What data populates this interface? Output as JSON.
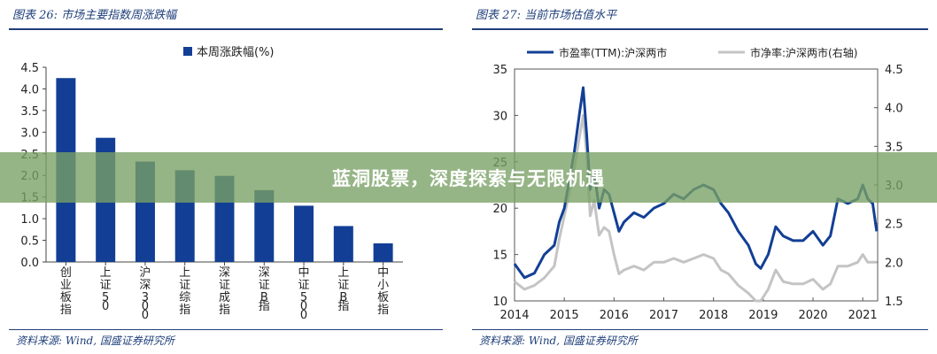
{
  "figures": {
    "left_title": "图表 26:  市场主要指数周涨跌幅",
    "right_title": "图表 27:  当前市场估值水平",
    "source": "资料来源: Wind, 国盛证券研究所"
  },
  "banner": {
    "text": "蓝洞股票，深度探索与无限机遇"
  },
  "colors": {
    "navy": "#123f95",
    "gray": "#c4c4c4",
    "accent": "#1f3f7a"
  },
  "chart_data": [
    {
      "type": "bar",
      "legend": "本周涨跌幅(%)",
      "categories": [
        "创业板指",
        "上证50",
        "沪深300",
        "上证综指",
        "深证成指",
        "深证B指",
        "中证500",
        "上证B指",
        "中小板指"
      ],
      "values": [
        4.25,
        2.87,
        2.32,
        2.12,
        1.99,
        1.66,
        1.3,
        0.83,
        0.43
      ],
      "ylim": [
        0,
        4.5
      ],
      "yticks": [
        "0.0",
        "0.5",
        "1.0",
        "1.5",
        "2.0",
        "2.5",
        "3.0",
        "3.5",
        "4.0",
        "4.5"
      ]
    },
    {
      "type": "line",
      "series": [
        {
          "name": "市盈率(TTM):沪深两市",
          "axis": "left",
          "points": [
            [
              2014.0,
              14
            ],
            [
              2014.2,
              12.5
            ],
            [
              2014.4,
              13
            ],
            [
              2014.6,
              15
            ],
            [
              2014.8,
              16
            ],
            [
              2014.9,
              18.5
            ],
            [
              2015.0,
              20
            ],
            [
              2015.1,
              23
            ],
            [
              2015.2,
              26
            ],
            [
              2015.3,
              30
            ],
            [
              2015.38,
              33
            ],
            [
              2015.45,
              28
            ],
            [
              2015.52,
              22
            ],
            [
              2015.6,
              24
            ],
            [
              2015.7,
              20
            ],
            [
              2015.8,
              22
            ],
            [
              2015.9,
              21.5
            ],
            [
              2016.0,
              19.5
            ],
            [
              2016.1,
              17.5
            ],
            [
              2016.2,
              18.5
            ],
            [
              2016.4,
              19.5
            ],
            [
              2016.6,
              19
            ],
            [
              2016.8,
              20
            ],
            [
              2017.0,
              20.5
            ],
            [
              2017.2,
              21.5
            ],
            [
              2017.4,
              21
            ],
            [
              2017.6,
              22
            ],
            [
              2017.8,
              22.5
            ],
            [
              2018.0,
              22
            ],
            [
              2018.15,
              20.5
            ],
            [
              2018.3,
              19.5
            ],
            [
              2018.5,
              17.5
            ],
            [
              2018.7,
              16
            ],
            [
              2018.85,
              14
            ],
            [
              2018.95,
              13.5
            ],
            [
              2019.1,
              15
            ],
            [
              2019.25,
              18
            ],
            [
              2019.4,
              17
            ],
            [
              2019.6,
              16.5
            ],
            [
              2019.8,
              16.5
            ],
            [
              2020.0,
              17.5
            ],
            [
              2020.2,
              16
            ],
            [
              2020.35,
              17
            ],
            [
              2020.5,
              21
            ],
            [
              2020.7,
              20.5
            ],
            [
              2020.9,
              21
            ],
            [
              2021.0,
              22.5
            ],
            [
              2021.1,
              21
            ],
            [
              2021.2,
              20.5
            ],
            [
              2021.28,
              17.5
            ]
          ]
        },
        {
          "name": "市净率:沪深两市(右轴)",
          "axis": "right",
          "points": [
            [
              2014.0,
              1.75
            ],
            [
              2014.2,
              1.65
            ],
            [
              2014.4,
              1.7
            ],
            [
              2014.6,
              1.8
            ],
            [
              2014.8,
              1.95
            ],
            [
              2014.9,
              2.3
            ],
            [
              2015.0,
              2.6
            ],
            [
              2015.1,
              2.9
            ],
            [
              2015.2,
              3.2
            ],
            [
              2015.3,
              3.6
            ],
            [
              2015.38,
              3.9
            ],
            [
              2015.45,
              3.4
            ],
            [
              2015.52,
              2.6
            ],
            [
              2015.6,
              2.8
            ],
            [
              2015.7,
              2.35
            ],
            [
              2015.8,
              2.45
            ],
            [
              2015.9,
              2.4
            ],
            [
              2016.0,
              2.1
            ],
            [
              2016.1,
              1.85
            ],
            [
              2016.2,
              1.9
            ],
            [
              2016.4,
              1.95
            ],
            [
              2016.6,
              1.9
            ],
            [
              2016.8,
              2.0
            ],
            [
              2017.0,
              2.0
            ],
            [
              2017.2,
              2.05
            ],
            [
              2017.4,
              2.0
            ],
            [
              2017.6,
              2.05
            ],
            [
              2017.8,
              2.1
            ],
            [
              2018.0,
              2.05
            ],
            [
              2018.15,
              1.9
            ],
            [
              2018.3,
              1.85
            ],
            [
              2018.5,
              1.7
            ],
            [
              2018.7,
              1.6
            ],
            [
              2018.85,
              1.5
            ],
            [
              2018.95,
              1.5
            ],
            [
              2019.1,
              1.65
            ],
            [
              2019.25,
              1.9
            ],
            [
              2019.4,
              1.75
            ],
            [
              2019.6,
              1.72
            ],
            [
              2019.8,
              1.72
            ],
            [
              2020.0,
              1.78
            ],
            [
              2020.2,
              1.65
            ],
            [
              2020.35,
              1.72
            ],
            [
              2020.5,
              1.95
            ],
            [
              2020.7,
              1.95
            ],
            [
              2020.9,
              2.0
            ],
            [
              2021.0,
              2.1
            ],
            [
              2021.1,
              2.0
            ],
            [
              2021.2,
              2.0
            ],
            [
              2021.28,
              2.0
            ]
          ]
        }
      ],
      "ylim_left": [
        10,
        35
      ],
      "ylim_right": [
        1.5,
        4.5
      ],
      "yticks_left": [
        "10",
        "15",
        "20",
        "25",
        "30",
        "35"
      ],
      "yticks_right": [
        "1.5",
        "2.0",
        "2.5",
        "3.0",
        "3.5",
        "4.0",
        "4.5"
      ],
      "xticks": [
        "2014",
        "2015",
        "2016",
        "2017",
        "2018",
        "2019",
        "2020",
        "2021"
      ],
      "xlim": [
        2014,
        2021.3
      ]
    }
  ]
}
